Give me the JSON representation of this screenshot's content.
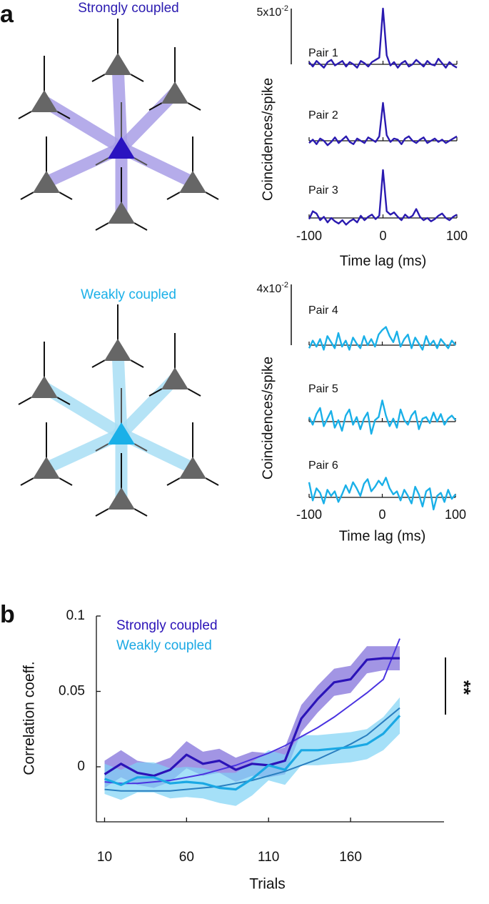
{
  "panel_labels": [
    "a",
    "b"
  ],
  "chart_data": [
    {
      "type": "correlogram",
      "group_label": "Strongly coupled",
      "color": "#2a1ab0",
      "link_color": "#a89ee6",
      "node_color": "#2a14c0",
      "ylabel": "Coincidences/spike",
      "xlabel": "Time lag (ms)",
      "xlim": [
        -100,
        100
      ],
      "xticks": [
        -100,
        0,
        100
      ],
      "scale_bar": {
        "value": 0.05,
        "label": "5x10",
        "exponent": "-2"
      },
      "x": [
        -100,
        -95,
        -90,
        -85,
        -80,
        -75,
        -70,
        -65,
        -60,
        -55,
        -50,
        -45,
        -40,
        -35,
        -30,
        -25,
        -20,
        -15,
        -10,
        -5,
        0,
        5,
        10,
        15,
        20,
        25,
        30,
        35,
        40,
        45,
        50,
        55,
        60,
        65,
        70,
        75,
        80,
        85,
        90,
        95,
        100
      ],
      "series": [
        {
          "name": "Pair 1",
          "values": [
            0.002,
            -0.002,
            0.003,
            0.0,
            -0.003,
            0.002,
            0.004,
            -0.001,
            0.001,
            0.003,
            -0.002,
            0.002,
            0.0,
            -0.003,
            0.003,
            0.001,
            -0.002,
            0.002,
            0.004,
            0.006,
            0.05,
            0.008,
            -0.001,
            0.002,
            -0.003,
            0.001,
            0.003,
            -0.002,
            0.0,
            0.004,
            0.001,
            -0.002,
            0.003,
            0.0,
            -0.001,
            0.005,
            0.001,
            -0.003,
            0.002,
            -0.001,
            -0.003
          ]
        },
        {
          "name": "Pair 2",
          "values": [
            -0.002,
            0.001,
            -0.003,
            0.002,
            0.0,
            -0.004,
            -0.001,
            0.003,
            -0.002,
            0.001,
            0.004,
            -0.001,
            -0.003,
            0.002,
            0.0,
            -0.002,
            0.003,
            0.001,
            -0.001,
            0.004,
            0.034,
            0.005,
            -0.001,
            0.002,
            0.001,
            -0.003,
            0.002,
            0.004,
            0.0,
            -0.002,
            0.001,
            0.003,
            -0.002,
            0.0,
            0.002,
            -0.001,
            0.001,
            -0.002,
            0.0,
            0.002,
            0.004
          ]
        },
        {
          "name": "Pair 3",
          "values": [
            -0.001,
            0.006,
            0.004,
            -0.002,
            0.001,
            -0.004,
            0.0,
            -0.003,
            -0.005,
            -0.002,
            -0.006,
            -0.003,
            -0.001,
            -0.004,
            0.002,
            -0.002,
            0.001,
            0.003,
            -0.001,
            0.002,
            0.043,
            0.006,
            0.003,
            0.005,
            0.001,
            -0.002,
            0.003,
            0.0,
            0.002,
            0.008,
            0.001,
            -0.002,
            0.0,
            -0.003,
            -0.001,
            0.002,
            0.004,
            0.0,
            -0.002,
            0.001,
            0.003
          ]
        }
      ]
    },
    {
      "type": "correlogram",
      "group_label": "Weakly coupled",
      "color": "#1ab0e8",
      "link_color": "#a8def5",
      "node_color": "#1ab0e8",
      "ylabel": "Coincidences/spike",
      "xlabel": "Time lag (ms)",
      "xlim": [
        -100,
        100
      ],
      "xticks": [
        -100,
        0,
        100
      ],
      "scale_bar": {
        "value": 0.04,
        "label": "4x10",
        "exponent": "-2"
      },
      "x": [
        -100,
        -95,
        -90,
        -85,
        -80,
        -75,
        -70,
        -65,
        -60,
        -55,
        -50,
        -45,
        -40,
        -35,
        -30,
        -25,
        -20,
        -15,
        -10,
        -5,
        0,
        5,
        10,
        15,
        20,
        25,
        30,
        35,
        40,
        45,
        50,
        55,
        60,
        65,
        70,
        75,
        80,
        85,
        90,
        95,
        100
      ],
      "series": [
        {
          "name": "Pair 4",
          "values": [
            -0.002,
            0.003,
            -0.001,
            0.004,
            -0.003,
            0.006,
            0.002,
            -0.002,
            0.008,
            -0.001,
            0.003,
            -0.003,
            0.005,
            0.001,
            -0.002,
            0.006,
            0.0,
            0.004,
            -0.001,
            0.007,
            0.01,
            0.012,
            0.006,
            0.002,
            0.009,
            -0.001,
            0.004,
            0.007,
            -0.002,
            0.005,
            0.001,
            -0.003,
            0.006,
            0.0,
            0.003,
            -0.002,
            0.004,
            0.001,
            -0.002,
            0.003,
            0.0
          ]
        },
        {
          "name": "Pair 5",
          "values": [
            0.003,
            -0.002,
            0.005,
            0.009,
            -0.003,
            0.002,
            0.007,
            -0.004,
            0.001,
            -0.006,
            0.004,
            0.008,
            -0.002,
            0.003,
            -0.005,
            0.002,
            0.006,
            -0.008,
            0.001,
            0.003,
            0.014,
            0.004,
            -0.003,
            0.002,
            -0.004,
            0.008,
            0.001,
            -0.002,
            0.004,
            0.007,
            -0.005,
            0.002,
            0.003,
            -0.001,
            0.006,
            0.0,
            0.005,
            -0.002,
            0.002,
            0.004,
            0.001
          ]
        },
        {
          "name": "Pair 6",
          "values": [
            0.01,
            -0.002,
            0.006,
            0.003,
            -0.004,
            0.005,
            0.001,
            0.004,
            -0.003,
            0.002,
            0.008,
            0.003,
            0.01,
            0.006,
            0.001,
            0.009,
            0.012,
            0.004,
            0.007,
            0.011,
            0.008,
            0.013,
            0.006,
            0.002,
            0.004,
            -0.002,
            0.005,
            0.001,
            -0.004,
            0.007,
            0.002,
            -0.006,
            0.004,
            0.006,
            -0.008,
            0.001,
            0.003,
            -0.003,
            0.005,
            -0.001,
            0.002
          ]
        }
      ]
    },
    {
      "type": "line",
      "xlabel": "Trials",
      "ylabel": "Correlation coeff.",
      "xlim": [
        5,
        217
      ],
      "ylim": [
        -0.0365,
        0.1
      ],
      "xticks": [
        10,
        60,
        110,
        160
      ],
      "yticks": [
        0,
        0.05,
        0.1
      ],
      "x": [
        10,
        20,
        30,
        40,
        50,
        60,
        70,
        80,
        90,
        100,
        110,
        120,
        130,
        140,
        150,
        160,
        170,
        180,
        190
      ],
      "series": [
        {
          "name": "Strongly coupled",
          "color": "#2b13b8",
          "band_color": "#7b68d8",
          "fit_color": "#4a33e0",
          "values": [
            -0.005,
            0.002,
            -0.004,
            -0.006,
            -0.002,
            0.008,
            0.002,
            0.004,
            -0.002,
            0.002,
            0.001,
            0.004,
            0.032,
            0.045,
            0.056,
            0.058,
            0.071,
            0.072,
            0.072
          ],
          "errors": [
            0.009,
            0.009,
            0.008,
            0.008,
            0.008,
            0.009,
            0.008,
            0.008,
            0.008,
            0.008,
            0.008,
            0.009,
            0.009,
            0.009,
            0.009,
            0.009,
            0.009,
            0.008,
            0.008
          ],
          "fit": [
            -0.01,
            -0.011,
            -0.011,
            -0.01,
            -0.009,
            -0.007,
            -0.005,
            -0.002,
            0.001,
            0.005,
            0.009,
            0.014,
            0.02,
            0.026,
            0.033,
            0.041,
            0.049,
            0.058,
            0.085
          ]
        },
        {
          "name": "Weakly coupled",
          "color": "#1aa8e4",
          "band_color": "#7fd3f5",
          "fit_color": "#2a7fc0",
          "values": [
            -0.008,
            -0.012,
            -0.007,
            -0.007,
            -0.011,
            -0.01,
            -0.011,
            -0.014,
            -0.015,
            -0.008,
            0.001,
            -0.002,
            0.011,
            0.011,
            0.012,
            0.013,
            0.015,
            0.022,
            0.034
          ],
          "errors": [
            0.01,
            0.01,
            0.01,
            0.01,
            0.01,
            0.01,
            0.01,
            0.01,
            0.011,
            0.011,
            0.01,
            0.01,
            0.01,
            0.01,
            0.01,
            0.01,
            0.01,
            0.011,
            0.012
          ],
          "fit": [
            -0.015,
            -0.016,
            -0.016,
            -0.016,
            -0.016,
            -0.015,
            -0.014,
            -0.013,
            -0.011,
            -0.009,
            -0.006,
            -0.003,
            0.001,
            0.005,
            0.01,
            0.015,
            0.021,
            0.03,
            0.039
          ]
        }
      ],
      "annotations": [
        {
          "text": "**"
        }
      ]
    }
  ]
}
